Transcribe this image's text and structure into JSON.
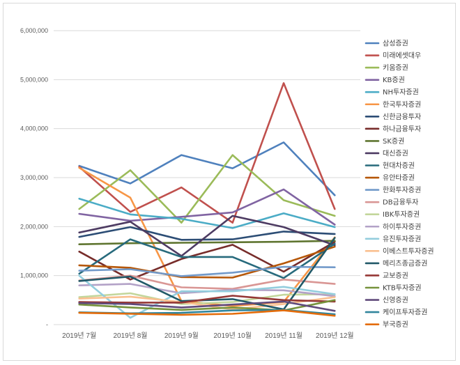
{
  "chart_data": {
    "type": "line",
    "title": "",
    "xlabel": "",
    "ylabel": "",
    "ylim": [
      0,
      6000000
    ],
    "yticks": [
      0,
      1000000,
      2000000,
      3000000,
      4000000,
      5000000,
      6000000
    ],
    "ytick_labels": [
      "-",
      "1,000,000",
      "2,000,000",
      "3,000,000",
      "4,000,000",
      "5,000,000",
      "6,000,000"
    ],
    "grid": true,
    "legend_position": "right",
    "categories": [
      "2019년 7월",
      "2019년 8월",
      "2019년 9월",
      "2019년 10월",
      "2019년 11월",
      "2019년 12월"
    ],
    "series": [
      {
        "name": "삼성증권",
        "color": "#4F81BD",
        "values": [
          3240000,
          2880000,
          3460000,
          3190000,
          3720000,
          2640000
        ]
      },
      {
        "name": "미래에셋대우",
        "color": "#C0504D",
        "values": [
          3220000,
          2300000,
          2800000,
          2080000,
          4930000,
          2360000
        ]
      },
      {
        "name": "키움증권",
        "color": "#9BBB59",
        "values": [
          2360000,
          3150000,
          2080000,
          3460000,
          2540000,
          2220000
        ]
      },
      {
        "name": "KB증권",
        "color": "#8064A2",
        "values": [
          2260000,
          2120000,
          2200000,
          2290000,
          2760000,
          2040000
        ]
      },
      {
        "name": "NH투자증권",
        "color": "#4BACC6",
        "values": [
          2570000,
          2250000,
          2160000,
          1970000,
          2270000,
          1990000
        ]
      },
      {
        "name": "한국투자증권",
        "color": "#F79646",
        "values": [
          3200000,
          2590000,
          480000,
          380000,
          460000,
          1780000
        ]
      },
      {
        "name": "신한금융투자",
        "color": "#2C4D75",
        "values": [
          1790000,
          1990000,
          1730000,
          1740000,
          1900000,
          1850000
        ]
      },
      {
        "name": "하나금융투자",
        "color": "#772C2A",
        "values": [
          1490000,
          920000,
          1340000,
          1630000,
          1080000,
          1690000
        ]
      },
      {
        "name": "SK증권",
        "color": "#5F7530",
        "values": [
          1640000,
          1660000,
          1670000,
          1680000,
          1690000,
          1710000
        ]
      },
      {
        "name": "대신증권",
        "color": "#4D3B62",
        "values": [
          1880000,
          2100000,
          1400000,
          2220000,
          1990000,
          1620000
        ]
      },
      {
        "name": "현대차증권",
        "color": "#276A7C",
        "values": [
          1040000,
          1740000,
          1380000,
          1380000,
          950000,
          1650000
        ]
      },
      {
        "name": "유안타증권",
        "color": "#B65708",
        "values": [
          1210000,
          1160000,
          970000,
          960000,
          1250000,
          1590000
        ]
      },
      {
        "name": "한화투자증권",
        "color": "#729ACA",
        "values": [
          1100000,
          1130000,
          990000,
          1060000,
          1180000,
          1170000
        ]
      },
      {
        "name": "DB금융투자",
        "color": "#D99694",
        "values": [
          900000,
          1000000,
          760000,
          730000,
          920000,
          830000
        ]
      },
      {
        "name": "IBK투자증권",
        "color": "#C3D69B",
        "values": [
          560000,
          640000,
          420000,
          460000,
          610000,
          620000
        ]
      },
      {
        "name": "하이투자증권",
        "color": "#B3A2C7",
        "values": [
          800000,
          830000,
          640000,
          710000,
          700000,
          580000
        ]
      },
      {
        "name": "유진투자증권",
        "color": "#93CDDD",
        "values": [
          1000000,
          140000,
          680000,
          680000,
          770000,
          620000
        ]
      },
      {
        "name": "이베스트투자증권",
        "color": "#FAC090",
        "values": [
          530000,
          570000,
          460000,
          310000,
          420000,
          560000
        ]
      },
      {
        "name": "메리츠종금증권",
        "color": "#215968",
        "values": [
          890000,
          980000,
          480000,
          520000,
          310000,
          1770000
        ]
      },
      {
        "name": "교보증권",
        "color": "#953735",
        "values": [
          460000,
          450000,
          450000,
          590000,
          500000,
          470000
        ]
      },
      {
        "name": "KTB투자증권",
        "color": "#76923C",
        "values": [
          410000,
          350000,
          300000,
          350000,
          290000,
          500000
        ]
      },
      {
        "name": "신영증권",
        "color": "#604A7B",
        "values": [
          440000,
          420000,
          350000,
          410000,
          470000,
          280000
        ]
      },
      {
        "name": "케이프투자증권",
        "color": "#31859C",
        "values": [
          250000,
          230000,
          240000,
          290000,
          300000,
          210000
        ]
      },
      {
        "name": "부국증권",
        "color": "#E46C0A",
        "values": [
          240000,
          220000,
          200000,
          220000,
          290000,
          180000
        ]
      }
    ]
  }
}
